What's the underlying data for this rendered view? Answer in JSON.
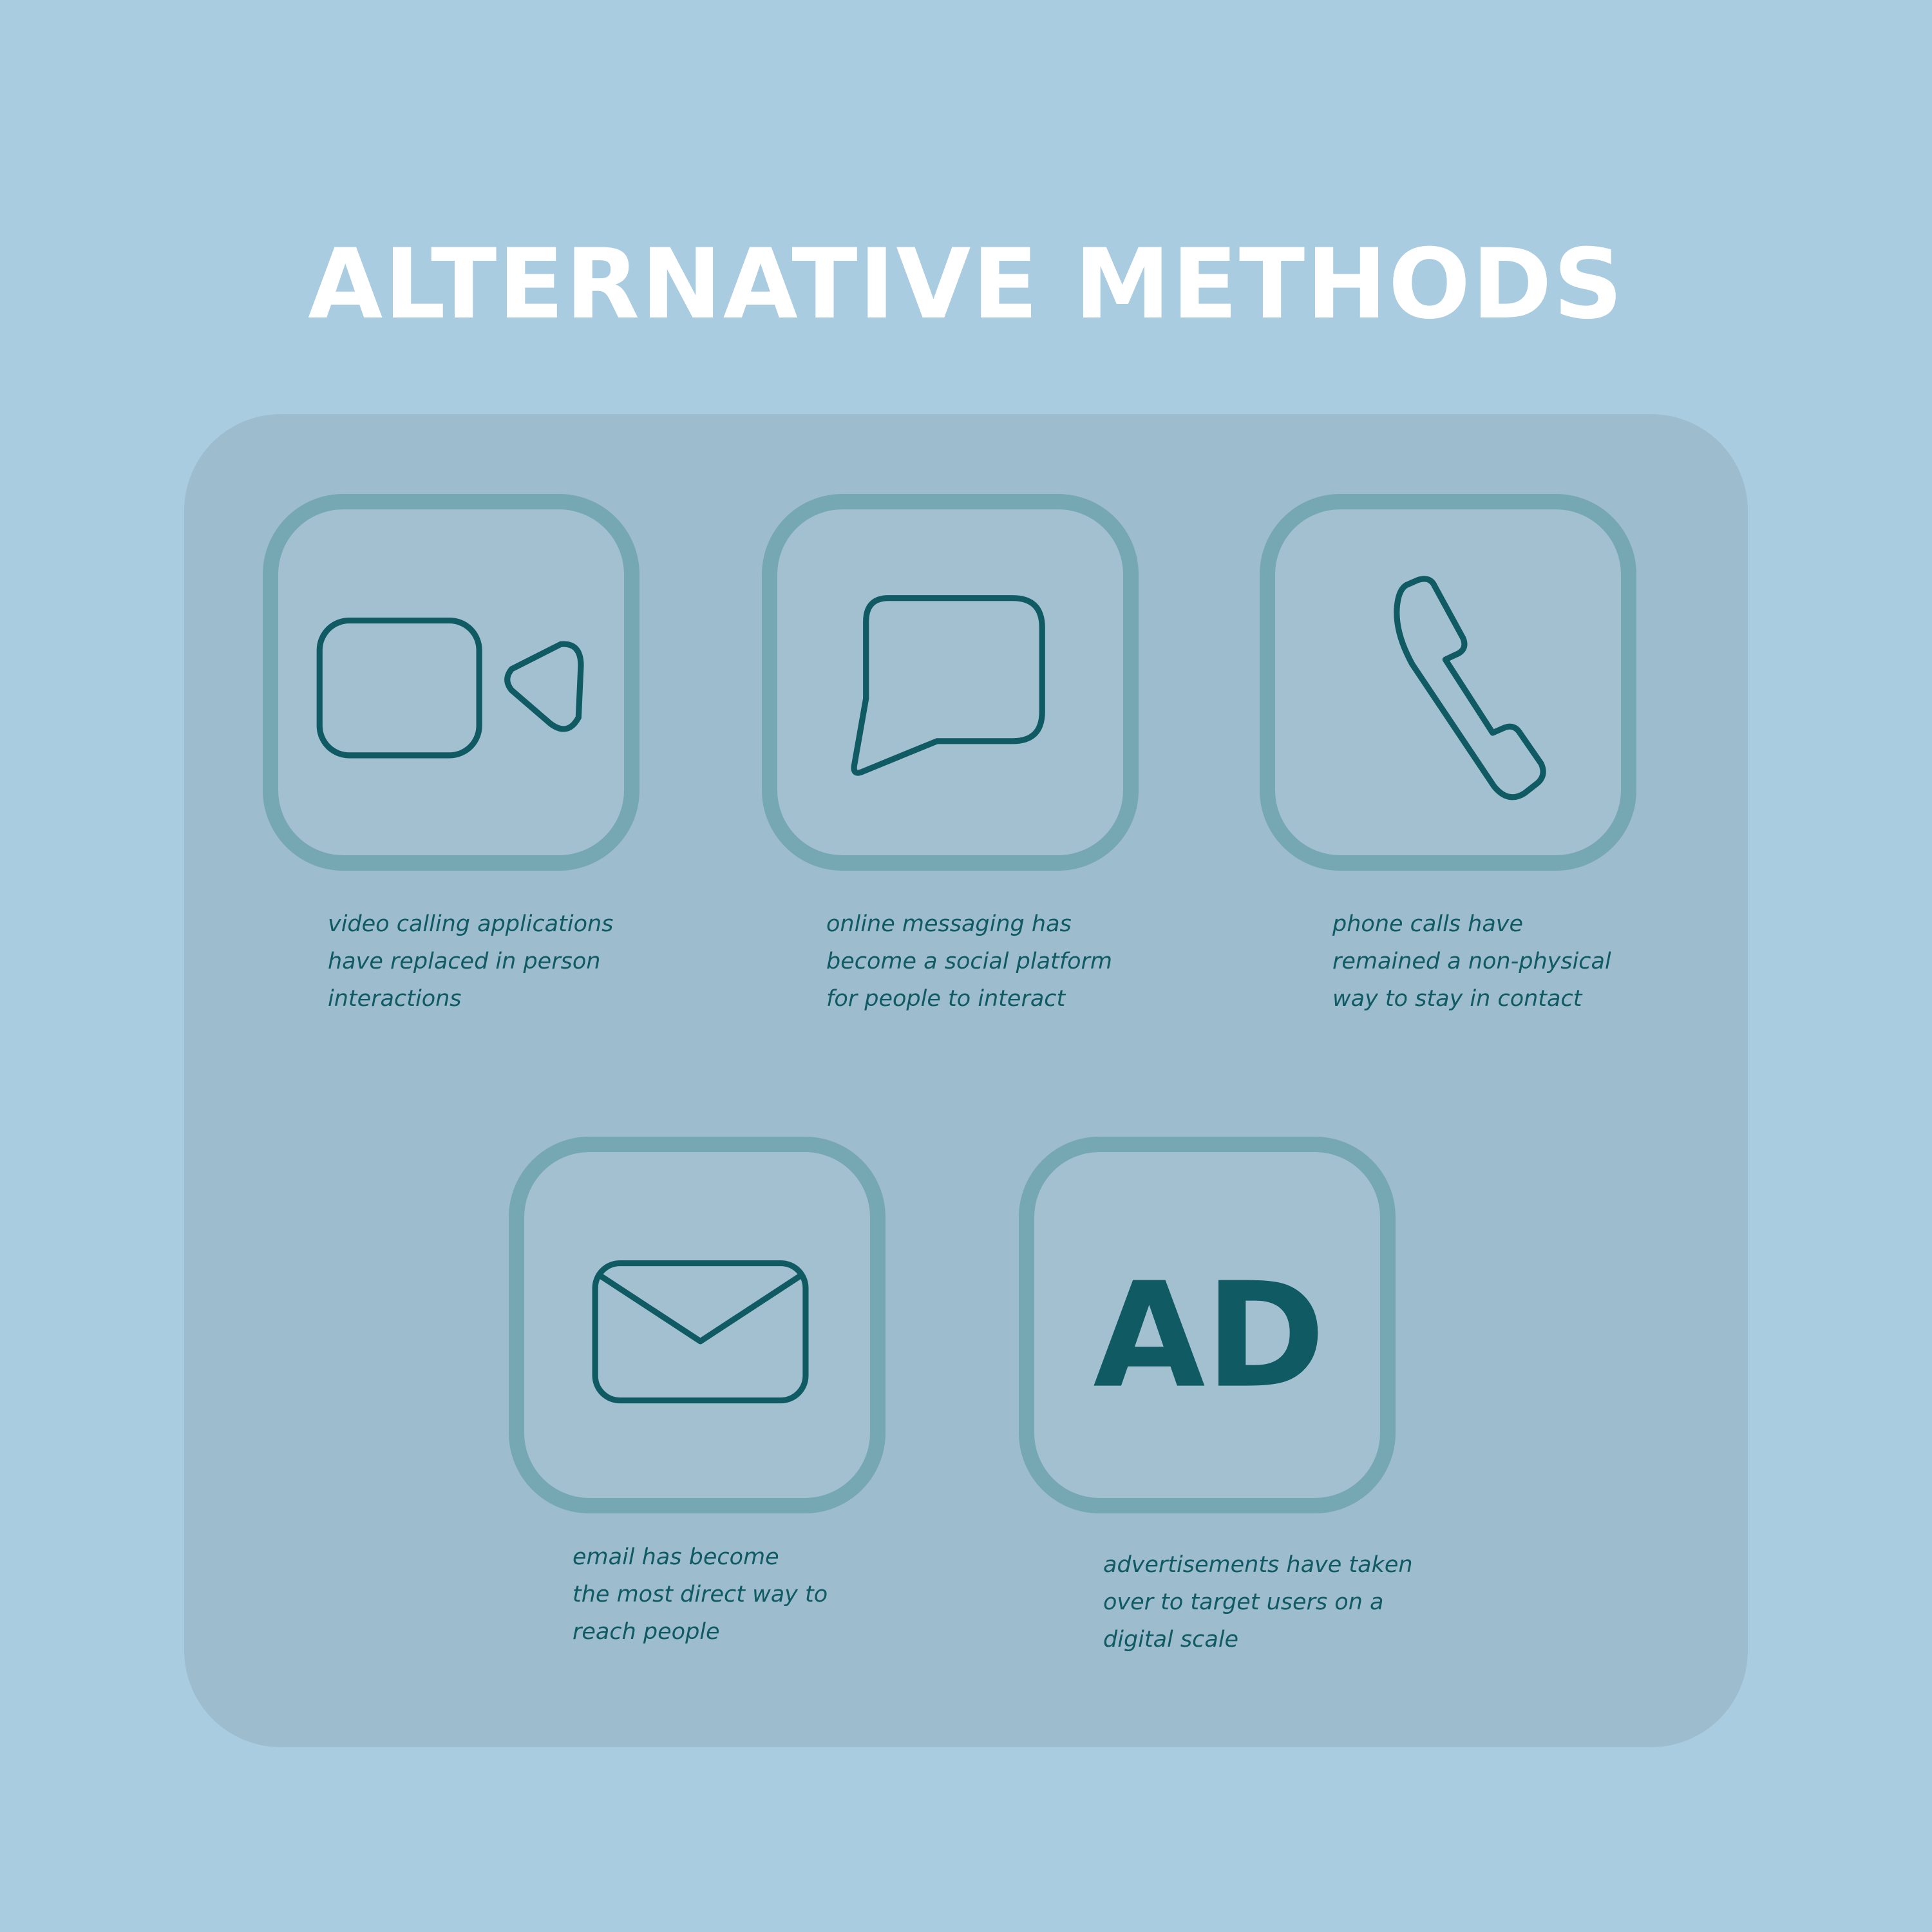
{
  "title": "ALTERNATIVE METHODS",
  "colors": {
    "background": "#a9cce0",
    "panel": "#9dbccd",
    "tile_border": "#75a8b3",
    "icon": "#0f5a63",
    "title": "#ffffff"
  },
  "methods": [
    {
      "icon": "video-camera-icon",
      "caption": "video calling applications\nhave replaced in person\ninteractions"
    },
    {
      "icon": "chat-bubble-icon",
      "caption": "online messaging has\nbecome a social platform\nfor people to interact"
    },
    {
      "icon": "phone-handset-icon",
      "caption": "phone calls have\nremained a non-physical\nway to stay in contact"
    },
    {
      "icon": "envelope-icon",
      "caption": "email has become\nthe most direct way to\nreach people"
    },
    {
      "icon": "ad-icon",
      "label": "AD",
      "caption": "advertisements have taken\nover to target users on a\ndigital scale"
    }
  ]
}
